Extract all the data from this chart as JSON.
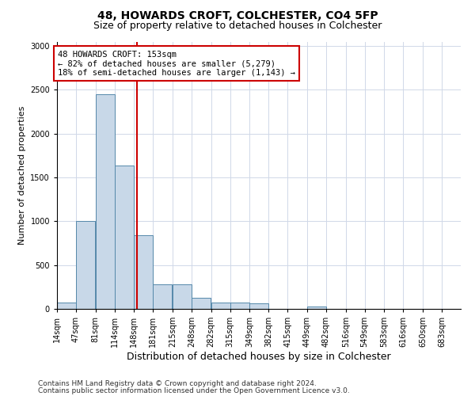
{
  "title": "48, HOWARDS CROFT, COLCHESTER, CO4 5FP",
  "subtitle": "Size of property relative to detached houses in Colchester",
  "xlabel": "Distribution of detached houses by size in Colchester",
  "ylabel": "Number of detached properties",
  "footnote1": "Contains HM Land Registry data © Crown copyright and database right 2024.",
  "footnote2": "Contains public sector information licensed under the Open Government Licence v3.0.",
  "bar_color": "#c8d8e8",
  "bar_edge_color": "#5588aa",
  "red_line_color": "#cc0000",
  "annotation_box_color": "#cc0000",
  "grid_color": "#d0d8e8",
  "background_color": "#ffffff",
  "bin_labels": [
    "14sqm",
    "47sqm",
    "81sqm",
    "114sqm",
    "148sqm",
    "181sqm",
    "215sqm",
    "248sqm",
    "282sqm",
    "315sqm",
    "349sqm",
    "382sqm",
    "415sqm",
    "449sqm",
    "482sqm",
    "516sqm",
    "549sqm",
    "583sqm",
    "616sqm",
    "650sqm",
    "683sqm"
  ],
  "bin_edges": [
    14,
    47,
    81,
    114,
    148,
    181,
    215,
    248,
    282,
    315,
    349,
    382,
    415,
    449,
    482,
    516,
    549,
    583,
    616,
    650,
    683
  ],
  "bin_width": 33,
  "bar_heights": [
    70,
    1000,
    2450,
    1640,
    840,
    280,
    280,
    130,
    70,
    70,
    60,
    0,
    0,
    30,
    0,
    0,
    0,
    0,
    0,
    0,
    0
  ],
  "property_size": 153,
  "ylim": [
    0,
    3050
  ],
  "yticks": [
    0,
    500,
    1000,
    1500,
    2000,
    2500,
    3000
  ],
  "annotation_text": "48 HOWARDS CROFT: 153sqm\n← 82% of detached houses are smaller (5,279)\n18% of semi-detached houses are larger (1,143) →",
  "annotation_fontsize": 7.5,
  "title_fontsize": 10,
  "subtitle_fontsize": 9,
  "ylabel_fontsize": 8,
  "xlabel_fontsize": 9,
  "tick_fontsize": 7,
  "footnote_fontsize": 6.5
}
